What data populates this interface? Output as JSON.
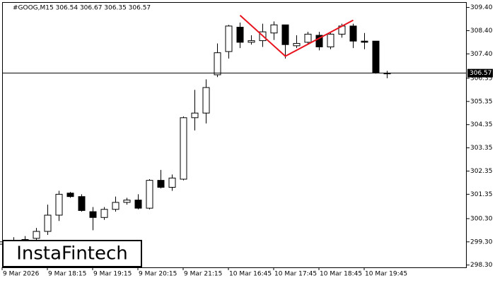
{
  "chart_data": {
    "type": "candlestick",
    "title": "#GOOG,M15  306.54 306.67 306.35 306.57",
    "watermark": "InstaFintech",
    "last_price": {
      "value": 306.57,
      "label": "306.57"
    },
    "categories": [
      "9 Mar 2026",
      null,
      null,
      null,
      "9 Mar 18:15",
      null,
      null,
      null,
      "9 Mar 19:15",
      null,
      null,
      null,
      "9 Mar 20:15",
      null,
      null,
      null,
      "9 Mar 21:15",
      null,
      null,
      null,
      "10 Mar 16:45",
      null,
      null,
      null,
      "10 Mar 17:45",
      null,
      null,
      null,
      "10 Mar 18:45",
      null,
      null,
      null,
      "10 Mar 19:45",
      null,
      null
    ],
    "open": [
      299.2,
      299.3,
      299.35,
      299.45,
      299.75,
      300.45,
      301.4,
      301.25,
      300.6,
      300.35,
      300.7,
      301.0,
      301.1,
      300.75,
      301.95,
      301.65,
      302.0,
      304.65,
      304.85,
      306.5,
      307.5,
      308.55,
      307.9,
      307.97,
      308.3,
      308.65,
      307.75,
      307.9,
      308.2,
      307.7,
      308.25,
      308.6,
      307.95,
      307.95,
      306.54
    ],
    "high": [
      299.4,
      299.5,
      299.55,
      299.9,
      300.9,
      301.5,
      301.45,
      301.35,
      300.8,
      300.8,
      301.25,
      301.2,
      301.35,
      302.0,
      302.4,
      302.2,
      304.7,
      305.85,
      306.3,
      307.85,
      308.65,
      308.75,
      308.2,
      308.7,
      308.8,
      308.65,
      308.2,
      308.35,
      308.35,
      308.3,
      308.7,
      308.7,
      308.3,
      307.95,
      306.67
    ],
    "low": [
      299.0,
      299.1,
      299.1,
      299.2,
      299.6,
      300.2,
      301.2,
      300.6,
      299.8,
      300.25,
      300.6,
      300.9,
      300.7,
      300.7,
      301.6,
      301.5,
      301.95,
      304.1,
      304.4,
      306.4,
      307.2,
      307.65,
      307.8,
      307.7,
      308.0,
      307.2,
      307.65,
      307.8,
      307.55,
      307.6,
      308.1,
      307.65,
      307.6,
      306.55,
      306.35
    ],
    "close": [
      299.3,
      299.35,
      299.4,
      299.75,
      300.45,
      301.35,
      301.25,
      300.65,
      300.35,
      300.7,
      301.0,
      301.1,
      300.75,
      301.95,
      301.65,
      302.05,
      304.65,
      304.85,
      305.95,
      307.45,
      308.6,
      307.9,
      307.97,
      308.35,
      308.65,
      307.8,
      307.85,
      308.25,
      307.7,
      308.25,
      308.6,
      307.95,
      307.9,
      306.6,
      306.57
    ],
    "pattern": {
      "color": "#e8141e",
      "indices": [
        21,
        25,
        31
      ],
      "prices": [
        309.06,
        307.3,
        308.85
      ]
    },
    "ylim": [
      298.2,
      309.6
    ],
    "yticks": [
      {
        "value": 309.4,
        "label": "309.40"
      },
      {
        "value": 308.4,
        "label": "308.40"
      },
      {
        "value": 307.4,
        "label": "307.40"
      },
      306.35,
      305.35,
      304.35,
      303.35,
      302.35,
      301.35,
      {
        "value": 300.3,
        "label": "300.30"
      },
      {
        "value": 299.3,
        "label": "299.30"
      },
      {
        "value": 298.3,
        "label": "298.30"
      }
    ]
  }
}
